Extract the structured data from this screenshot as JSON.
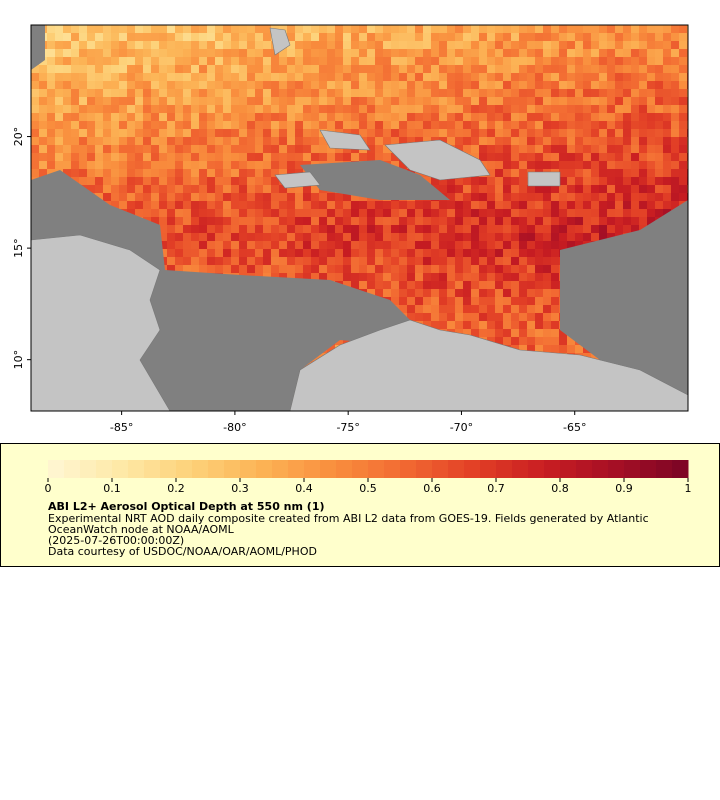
{
  "map_data": {
    "xlim": [
      -89,
      -60
    ],
    "ylim": [
      7.7,
      25
    ],
    "xticks": [
      {
        "value": -85,
        "label": "-85°"
      },
      {
        "value": -80,
        "label": "-80°"
      },
      {
        "value": -75,
        "label": "-75°"
      },
      {
        "value": -70,
        "label": "-70°"
      },
      {
        "value": -65,
        "label": "-65°"
      }
    ],
    "yticks": [
      {
        "value": 10,
        "label": "10°"
      },
      {
        "value": 15,
        "label": "15°"
      },
      {
        "value": 20,
        "label": "20°"
      }
    ],
    "colorbar": {
      "lim": [
        0,
        1
      ],
      "ticks": [
        0,
        0.1,
        0.2,
        0.3,
        0.4,
        0.5,
        0.6,
        0.7,
        0.8,
        0.9,
        1
      ],
      "colormap": [
        "#fff7d4",
        "#fee9a8",
        "#fdd27a",
        "#fcb355",
        "#f98f3e",
        "#f26a32",
        "#e23f26",
        "#c81d22",
        "#a50f25",
        "#7a0425"
      ]
    },
    "title": "ABI L2+ Aerosol Optical Depth at 550 nm (1)",
    "lines": [
      "Experimental NRT AOD daily composite created from ABI L2 data from GOES-19. Fields generated by Atlantic",
      "OceanWatch node at NOAA/AOML",
      "(2025-07-26T00:00:00Z)",
      "Data courtesy of USDOC/NOAA/OAR/AOML/PHOD"
    ]
  }
}
